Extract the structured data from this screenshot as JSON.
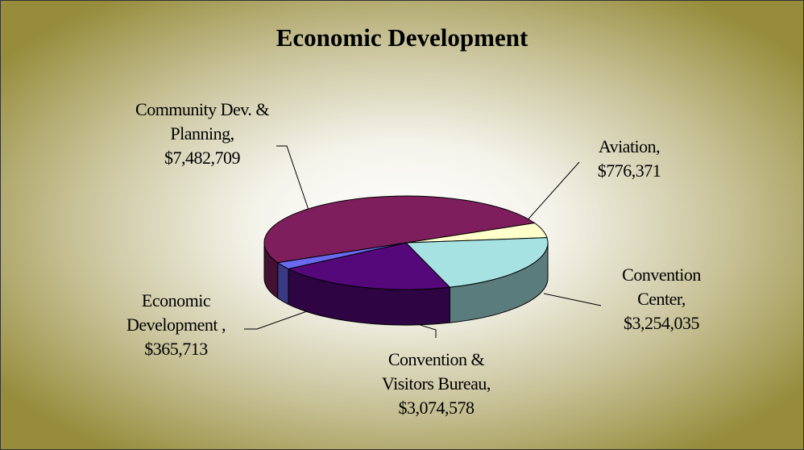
{
  "chart_data": {
    "type": "pie",
    "title": "Economic Development",
    "categories": [
      "Aviation,",
      "Convention Center,",
      "Convention & Visitors Bureau,",
      "Economic Development ,",
      "Community Dev. & Planning,"
    ],
    "values": [
      776371,
      3254035,
      3074578,
      365713,
      7482709
    ],
    "value_labels": [
      "$776,371",
      "$3,254,035",
      "$3,074,578",
      "$365,713",
      "$7,482,709"
    ],
    "colors": [
      "#ffffcc",
      "#a6e2e2",
      "#54087a",
      "#6a6af0",
      "#7e1e5c"
    ]
  }
}
